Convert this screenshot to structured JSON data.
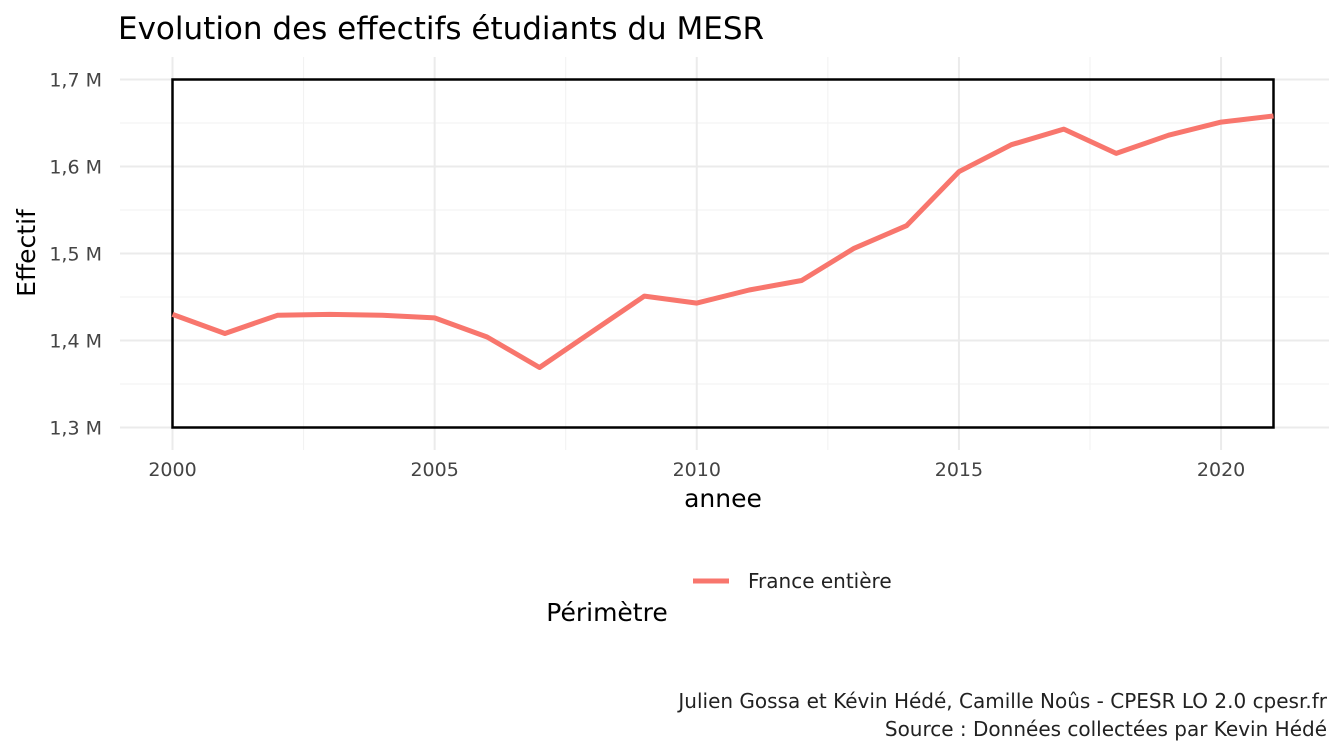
{
  "chart_data": {
    "type": "line",
    "title": "Evolution des effectifs étudiants du MESR",
    "xlabel": "annee",
    "ylabel": "Effectif",
    "x": [
      2000,
      2001,
      2002,
      2003,
      2004,
      2005,
      2006,
      2007,
      2008,
      2009,
      2010,
      2011,
      2012,
      2013,
      2014,
      2015,
      2016,
      2017,
      2018,
      2019,
      2020,
      2021
    ],
    "series": [
      {
        "name": "France entière",
        "color": "#f8766d",
        "values": [
          1.43,
          1.408,
          1.429,
          1.43,
          1.429,
          1.426,
          1.404,
          1.369,
          1.41,
          1.451,
          1.443,
          1.458,
          1.469,
          1.506,
          1.532,
          1.594,
          1.625,
          1.643,
          1.615,
          1.636,
          1.651,
          1.658
        ]
      }
    ],
    "xlim": [
      2000,
      2021
    ],
    "ylim": [
      1.3,
      1.7
    ],
    "x_ticks": [
      2000,
      2005,
      2010,
      2015,
      2020
    ],
    "x_tick_labels": [
      "2000",
      "2005",
      "2010",
      "2015",
      "2020"
    ],
    "y_ticks": [
      1.3,
      1.4,
      1.5,
      1.6,
      1.7
    ],
    "y_tick_labels": [
      "1,3 M",
      "1,4 M",
      "1,5 M",
      "1,6 M",
      "1,7 M"
    ],
    "legend": {
      "title": "Périmètre",
      "placement": "bottom",
      "entries": [
        "France entière"
      ]
    },
    "grid": true,
    "caption": [
      "Julien Gossa et Kévin Hédé, Camille Noûs - CPESR LO 2.0 cpesr.fr",
      "Source : Données collectées par Kevin Hédé"
    ]
  }
}
